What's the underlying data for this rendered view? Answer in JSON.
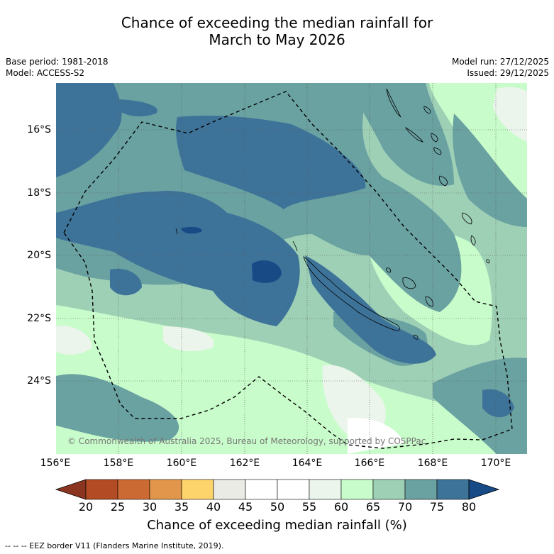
{
  "title": {
    "line1": "Chance of exceeding the median rainfall for",
    "line2": "March to May 2026"
  },
  "info": {
    "base_period": "Base period: 1981-2018",
    "model": "Model: ACCESS-S2",
    "model_run": "Model run: 27/12/2025",
    "issued": "Issued: 29/12/2025"
  },
  "map": {
    "lon_ticks": [
      "156°E",
      "158°E",
      "160°E",
      "162°E",
      "164°E",
      "166°E",
      "168°E",
      "170°E"
    ],
    "lat_ticks": [
      "16°S",
      "18°S",
      "20°S",
      "22°S",
      "24°S"
    ],
    "copyright": "© Commonwealth of Australia 2025, Bureau of Meteorology, supported by COSPPac",
    "lon_range": [
      156,
      171
    ],
    "lat_range": [
      -26.2,
      -14.5
    ]
  },
  "colorbar": {
    "ticks": [
      "20",
      "25",
      "30",
      "35",
      "40",
      "45",
      "50",
      "55",
      "60",
      "65",
      "70",
      "75",
      "80"
    ],
    "colors": [
      "#8b3520",
      "#b34c25",
      "#cb6a33",
      "#e2964b",
      "#fdd36c",
      "#ebebe6",
      "#ffffff",
      "#ffffff",
      "#ebf5eb",
      "#c8fcca",
      "#9ed0b6",
      "#6aa1a1",
      "#3e7399",
      "#184a85"
    ],
    "label": "Chance of exceeding median rainfall (%)"
  },
  "legend": {
    "eez": "--  --  -- EEZ border V11 (Flanders Marine Institute, 2019)."
  }
}
